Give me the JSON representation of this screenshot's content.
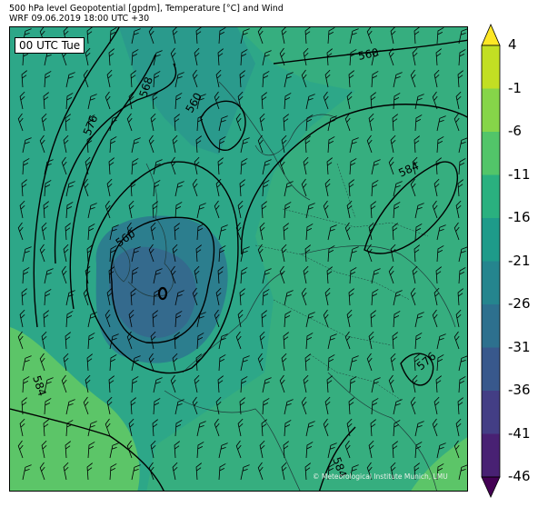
{
  "header": {
    "title": "500 hPa level Geopotential [gpdm], Temperature [°C] and Wind",
    "subtitle": "WRF 09.06.2019 18:00 UTC +30"
  },
  "map": {
    "valid_time_label": "00 UTC Tue",
    "credit": "© Meteorological Institute Munich, LMU",
    "contour_labels": [
      "560",
      "568",
      "576",
      "560",
      "560",
      "584",
      "584",
      "576",
      "584"
    ]
  },
  "colorbar": {
    "ticks": [
      "4",
      "-1",
      "-6",
      "-11",
      "-16",
      "-21",
      "-26",
      "-31",
      "-36",
      "-41",
      "-46"
    ],
    "colors": [
      "#fde725",
      "#c2df23",
      "#86d549",
      "#52c569",
      "#2ab07f",
      "#1e9b8a",
      "#25858e",
      "#2d708e",
      "#38588c",
      "#433e85",
      "#482173",
      "#440154"
    ]
  }
}
